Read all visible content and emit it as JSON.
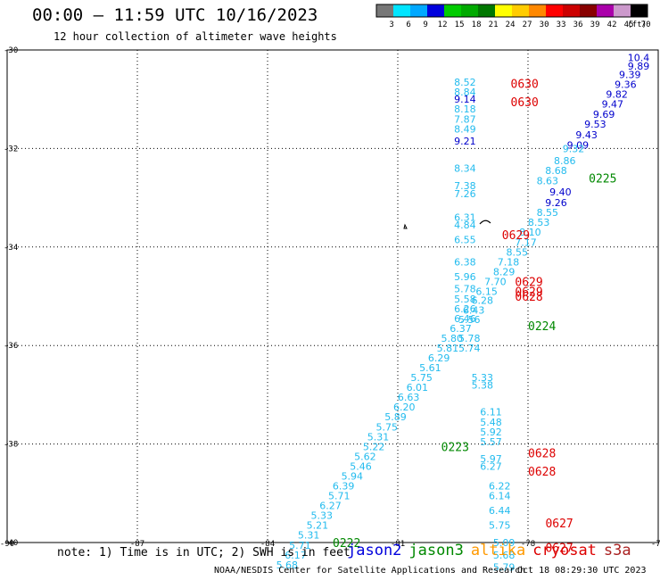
{
  "header": {
    "title": "00:00 – 11:59 UTC 10/16/2023",
    "subtitle": "12 hour collection of altimeter wave heights"
  },
  "colorbar": {
    "unit": "(ft)",
    "labels": [
      "3",
      "6",
      "9",
      "12",
      "15",
      "18",
      "21",
      "24",
      "27",
      "30",
      "33",
      "36",
      "39",
      "42",
      "45",
      "70"
    ],
    "colors": [
      "#777777",
      "#00e5ff",
      "#00a8ff",
      "#0000dd",
      "#00cc00",
      "#00aa00",
      "#007700",
      "#ffff00",
      "#ffcc00",
      "#ff8800",
      "#ff0000",
      "#cc0000",
      "#880000",
      "#aa00aa",
      "#cc99cc",
      "#000000"
    ]
  },
  "footer": {
    "note": "note:  1) Time is in UTC; 2) SWH is in feet",
    "credit": "NOAA/NESDIS Center for Satellite Applications and Research",
    "timestamp": "Oct 18 08:29:30 UTC 2023"
  },
  "legend": [
    {
      "name": "jason2",
      "color": "#0000dd"
    },
    {
      "name": "jason3",
      "color": "#008800"
    },
    {
      "name": "altika",
      "color": "#ff9900"
    },
    {
      "name": "cryosat",
      "color": "#dd0000"
    },
    {
      "name": "s3a",
      "color": "#aa2222"
    }
  ],
  "chart_data": {
    "type": "scatter",
    "xlim": [
      -90,
      -75
    ],
    "ylim": [
      -40,
      -30
    ],
    "x_ticks": [
      "-90",
      "-87",
      "-84",
      "-81",
      "-78",
      "-75"
    ],
    "y_ticks": [
      "-30",
      "-32",
      "-34",
      "-36",
      "-38",
      "-40"
    ],
    "grid": true,
    "colors": {
      "cyan": "#22bbee",
      "blue": "#0000cc",
      "green": "#008800",
      "red": "#dd0000"
    },
    "points": [
      {
        "x": -75.2,
        "y": -30.15,
        "t": "10.4",
        "c": "blue"
      },
      {
        "x": -75.2,
        "y": -30.33,
        "t": "9.89",
        "c": "blue"
      },
      {
        "x": -75.4,
        "y": -30.5,
        "t": "9.39",
        "c": "blue"
      },
      {
        "x": -75.5,
        "y": -30.7,
        "t": "9.36",
        "c": "blue"
      },
      {
        "x": -75.7,
        "y": -30.9,
        "t": "9.82",
        "c": "blue"
      },
      {
        "x": -75.8,
        "y": -31.1,
        "t": "9.47",
        "c": "blue"
      },
      {
        "x": -76.0,
        "y": -31.3,
        "t": "9.69",
        "c": "blue"
      },
      {
        "x": -76.2,
        "y": -31.5,
        "t": "9.53",
        "c": "blue"
      },
      {
        "x": -76.4,
        "y": -31.72,
        "t": "9.43",
        "c": "blue"
      },
      {
        "x": -76.6,
        "y": -31.93,
        "t": "9.09",
        "c": "blue"
      },
      {
        "x": -76.7,
        "y": -32.0,
        "t": "9.32",
        "c": "cyan"
      },
      {
        "x": -76.9,
        "y": -32.25,
        "t": "8.86",
        "c": "cyan"
      },
      {
        "x": -77.1,
        "y": -32.45,
        "t": "8.68",
        "c": "cyan"
      },
      {
        "x": -77.3,
        "y": -32.65,
        "t": "8.63",
        "c": "cyan"
      },
      {
        "x": -77.0,
        "y": -32.88,
        "t": "9.40",
        "c": "blue"
      },
      {
        "x": -77.1,
        "y": -33.1,
        "t": "9.26",
        "c": "blue"
      },
      {
        "x": -77.3,
        "y": -33.3,
        "t": "8.55",
        "c": "cyan"
      },
      {
        "x": -77.5,
        "y": -33.5,
        "t": "8.53",
        "c": "cyan"
      },
      {
        "x": -77.7,
        "y": -33.7,
        "t": "8.10",
        "c": "cyan"
      },
      {
        "x": -77.8,
        "y": -33.9,
        "t": "7.17",
        "c": "cyan"
      },
      {
        "x": -78.0,
        "y": -34.1,
        "t": "8.55",
        "c": "cyan"
      },
      {
        "x": -78.2,
        "y": -34.3,
        "t": "7.18",
        "c": "cyan"
      },
      {
        "x": -78.3,
        "y": -34.5,
        "t": "8.29",
        "c": "cyan"
      },
      {
        "x": -78.5,
        "y": -34.7,
        "t": "7.70",
        "c": "cyan"
      },
      {
        "x": -78.7,
        "y": -34.9,
        "t": "6.15",
        "c": "cyan"
      },
      {
        "x": -78.8,
        "y": -35.08,
        "t": "6.28",
        "c": "cyan"
      },
      {
        "x": -79.0,
        "y": -35.28,
        "t": "6.43",
        "c": "cyan"
      },
      {
        "x": -79.1,
        "y": -35.47,
        "t": "5.56",
        "c": "cyan"
      },
      {
        "x": -79.3,
        "y": -35.65,
        "t": "6.37",
        "c": "cyan"
      },
      {
        "x": -79.5,
        "y": -35.85,
        "t": "5.80",
        "c": "cyan"
      },
      {
        "x": -79.6,
        "y": -36.05,
        "t": "5.81",
        "c": "cyan"
      },
      {
        "x": -79.8,
        "y": -36.25,
        "t": "6.29",
        "c": "cyan"
      },
      {
        "x": -80.0,
        "y": -36.45,
        "t": "5.61",
        "c": "cyan"
      },
      {
        "x": -80.2,
        "y": -36.65,
        "t": "5.75",
        "c": "cyan"
      },
      {
        "x": -80.3,
        "y": -36.85,
        "t": "6.01",
        "c": "cyan"
      },
      {
        "x": -80.5,
        "y": -37.05,
        "t": "6.63",
        "c": "cyan"
      },
      {
        "x": -80.6,
        "y": -37.25,
        "t": "6.20",
        "c": "cyan"
      },
      {
        "x": -80.8,
        "y": -37.45,
        "t": "5.89",
        "c": "cyan"
      },
      {
        "x": -81.0,
        "y": -37.65,
        "t": "5.75",
        "c": "cyan"
      },
      {
        "x": -81.2,
        "y": -37.85,
        "t": "5.31",
        "c": "cyan"
      },
      {
        "x": -81.3,
        "y": -38.05,
        "t": "5.22",
        "c": "cyan"
      },
      {
        "x": -81.5,
        "y": -38.25,
        "t": "5.62",
        "c": "cyan"
      },
      {
        "x": -81.6,
        "y": -38.45,
        "t": "5.46",
        "c": "cyan"
      },
      {
        "x": -81.8,
        "y": -38.65,
        "t": "5.94",
        "c": "cyan"
      },
      {
        "x": -82.0,
        "y": -38.85,
        "t": "6.39",
        "c": "cyan"
      },
      {
        "x": -82.1,
        "y": -39.05,
        "t": "5.71",
        "c": "cyan"
      },
      {
        "x": -82.3,
        "y": -39.25,
        "t": "6.27",
        "c": "cyan"
      },
      {
        "x": -82.5,
        "y": -39.45,
        "t": "5.33",
        "c": "cyan"
      },
      {
        "x": -82.6,
        "y": -39.65,
        "t": "5.21",
        "c": "cyan"
      },
      {
        "x": -82.8,
        "y": -39.85,
        "t": "5.31",
        "c": "cyan"
      },
      {
        "x": -83.0,
        "y": -40.05,
        "t": "5.71",
        "c": "cyan"
      },
      {
        "x": -83.1,
        "y": -40.25,
        "t": "6.17",
        "c": "cyan"
      },
      {
        "x": -83.3,
        "y": -40.45,
        "t": "5.68",
        "c": "cyan"
      },
      {
        "x": -79.2,
        "y": -30.65,
        "t": "8.52",
        "c": "cyan"
      },
      {
        "x": -79.2,
        "y": -30.85,
        "t": "8.84",
        "c": "cyan"
      },
      {
        "x": -79.2,
        "y": -31.0,
        "t": "9.14",
        "c": "blue"
      },
      {
        "x": -79.2,
        "y": -31.2,
        "t": "8.18",
        "c": "cyan"
      },
      {
        "x": -79.2,
        "y": -31.4,
        "t": "7.87",
        "c": "cyan"
      },
      {
        "x": -79.2,
        "y": -31.6,
        "t": "8.49",
        "c": "cyan"
      },
      {
        "x": -79.2,
        "y": -31.85,
        "t": "9.21",
        "c": "blue"
      },
      {
        "x": -79.2,
        "y": -32.4,
        "t": "8.34",
        "c": "cyan"
      },
      {
        "x": -79.2,
        "y": -32.75,
        "t": "7.38",
        "c": "cyan"
      },
      {
        "x": -79.2,
        "y": -32.92,
        "t": "7.26",
        "c": "cyan"
      },
      {
        "x": -79.2,
        "y": -33.4,
        "t": "6.31",
        "c": "cyan"
      },
      {
        "x": -79.2,
        "y": -33.55,
        "t": "4.84",
        "c": "cyan"
      },
      {
        "x": -79.2,
        "y": -33.85,
        "t": "6.55",
        "c": "cyan"
      },
      {
        "x": -79.2,
        "y": -34.3,
        "t": "6.38",
        "c": "cyan"
      },
      {
        "x": -79.2,
        "y": -34.6,
        "t": "5.96",
        "c": "cyan"
      },
      {
        "x": -79.2,
        "y": -34.85,
        "t": "5.78",
        "c": "cyan"
      },
      {
        "x": -79.2,
        "y": -35.05,
        "t": "5.58",
        "c": "cyan"
      },
      {
        "x": -79.2,
        "y": -35.25,
        "t": "6.26",
        "c": "cyan"
      },
      {
        "x": -79.2,
        "y": -35.45,
        "t": "6.46",
        "c": "cyan"
      },
      {
        "x": -79.1,
        "y": -35.85,
        "t": "5.78",
        "c": "cyan"
      },
      {
        "x": -79.1,
        "y": -36.05,
        "t": "5.74",
        "c": "cyan"
      },
      {
        "x": -78.8,
        "y": -36.65,
        "t": "5.33",
        "c": "cyan"
      },
      {
        "x": -78.8,
        "y": -36.8,
        "t": "5.38",
        "c": "cyan"
      },
      {
        "x": -78.6,
        "y": -37.35,
        "t": "6.11",
        "c": "cyan"
      },
      {
        "x": -78.6,
        "y": -37.55,
        "t": "5.48",
        "c": "cyan"
      },
      {
        "x": -78.6,
        "y": -37.75,
        "t": "5.92",
        "c": "cyan"
      },
      {
        "x": -78.6,
        "y": -37.95,
        "t": "5.57",
        "c": "cyan"
      },
      {
        "x": -78.6,
        "y": -38.3,
        "t": "5.97",
        "c": "cyan"
      },
      {
        "x": -78.6,
        "y": -38.45,
        "t": "6.27",
        "c": "cyan"
      },
      {
        "x": -78.4,
        "y": -38.85,
        "t": "6.22",
        "c": "cyan"
      },
      {
        "x": -78.4,
        "y": -39.05,
        "t": "6.14",
        "c": "cyan"
      },
      {
        "x": -78.4,
        "y": -39.35,
        "t": "6.44",
        "c": "cyan"
      },
      {
        "x": -78.4,
        "y": -39.65,
        "t": "5.75",
        "c": "cyan"
      },
      {
        "x": -78.3,
        "y": -40.0,
        "t": "5.09",
        "c": "cyan"
      },
      {
        "x": -78.3,
        "y": -40.25,
        "t": "5.68",
        "c": "cyan"
      },
      {
        "x": -78.3,
        "y": -40.5,
        "t": "5.79",
        "c": "cyan"
      }
    ],
    "time_labels": [
      {
        "x": -78.4,
        "y": -30.68,
        "t": "0630",
        "c": "red"
      },
      {
        "x": -78.4,
        "y": -31.05,
        "t": "0630",
        "c": "red"
      },
      {
        "x": -76.6,
        "y": -32.6,
        "t": "0225",
        "c": "green"
      },
      {
        "x": -78.6,
        "y": -33.75,
        "t": "0629",
        "c": "red"
      },
      {
        "x": -78.3,
        "y": -34.7,
        "t": "0629",
        "c": "red"
      },
      {
        "x": -78.3,
        "y": -34.9,
        "t": "0629",
        "c": "red"
      },
      {
        "x": -78.3,
        "y": -35.0,
        "t": "0628",
        "c": "red"
      },
      {
        "x": -78.0,
        "y": -35.6,
        "t": "0224",
        "c": "green"
      },
      {
        "x": -80.0,
        "y": -38.05,
        "t": "0223",
        "c": "green"
      },
      {
        "x": -78.0,
        "y": -38.18,
        "t": "0628",
        "c": "red"
      },
      {
        "x": -78.0,
        "y": -38.55,
        "t": "0628",
        "c": "red"
      },
      {
        "x": -77.6,
        "y": -39.6,
        "t": "0627",
        "c": "red"
      },
      {
        "x": -77.6,
        "y": -40.1,
        "t": "0627",
        "c": "red"
      },
      {
        "x": -82.5,
        "y": -40.0,
        "t": "0222",
        "c": "green"
      }
    ]
  }
}
